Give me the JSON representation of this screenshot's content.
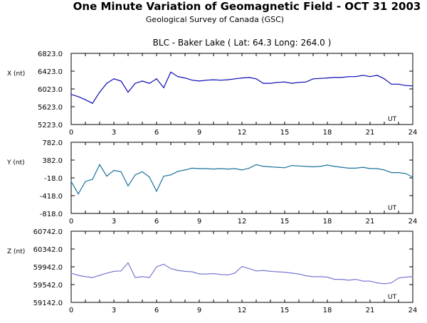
{
  "chart_data": {
    "type": "line",
    "title": "One Minute Variation of Geomagnetic Field - OCT 31 2003",
    "subtitle": "Geological Survey of Canada (GSC)",
    "station": "BLC - Baker Lake ( Lat: 64.3  Long: 264.0 )",
    "x": [
      0,
      0.5,
      1,
      1.5,
      2,
      2.5,
      3,
      3.5,
      4,
      4.5,
      5,
      5.5,
      6,
      6.5,
      7,
      7.5,
      8,
      8.5,
      9,
      9.5,
      10,
      10.5,
      11,
      11.5,
      12,
      12.5,
      13,
      13.5,
      14,
      14.5,
      15,
      15.5,
      16,
      16.5,
      17,
      17.5,
      18,
      18.5,
      19,
      19.5,
      20,
      20.5,
      21,
      21.5,
      22,
      22.5,
      23,
      23.5,
      24
    ],
    "xlabel": "UT",
    "xticks": [
      "0",
      "3",
      "6",
      "9",
      "12",
      "15",
      "18",
      "21",
      "24"
    ],
    "xlim": [
      0,
      24
    ],
    "panels": [
      {
        "name": "X",
        "ylabel": "X (nt)",
        "color": "#0a0ab4",
        "ylim": [
          5223,
          6823
        ],
        "yticks": [
          "6823.0",
          "6423.0",
          "6023.0",
          "5623.0",
          "5223.0"
        ],
        "values": [
          5900,
          5850,
          5780,
          5700,
          5950,
          6150,
          6250,
          6200,
          5950,
          6150,
          6200,
          6150,
          6250,
          6050,
          6400,
          6300,
          6270,
          6220,
          6200,
          6220,
          6230,
          6220,
          6230,
          6250,
          6270,
          6280,
          6250,
          6150,
          6150,
          6170,
          6180,
          6150,
          6170,
          6180,
          6250,
          6260,
          6270,
          6280,
          6280,
          6300,
          6300,
          6330,
          6300,
          6330,
          6250,
          6130,
          6130,
          6100,
          6090
        ]
      },
      {
        "name": "Y",
        "ylabel": "Y (nt)",
        "color": "#1a729c",
        "ylim": [
          -818,
          782
        ],
        "yticks": [
          "782.0",
          "382.0",
          "-18.0",
          "-418.0",
          "-818.0"
        ],
        "values": [
          -100,
          -380,
          -100,
          -50,
          280,
          20,
          150,
          120,
          -200,
          50,
          120,
          0,
          -320,
          20,
          50,
          130,
          160,
          200,
          190,
          190,
          180,
          190,
          180,
          190,
          160,
          200,
          280,
          240,
          230,
          220,
          210,
          260,
          250,
          240,
          230,
          240,
          270,
          240,
          220,
          200,
          200,
          220,
          190,
          190,
          160,
          100,
          100,
          80,
          0
        ]
      },
      {
        "name": "Z",
        "ylabel": "Z (nt)",
        "color": "#7a78d2",
        "ylim": [
          59142,
          60742
        ],
        "yticks": [
          "60742.0",
          "60342.0",
          "59942.0",
          "59542.0",
          "59142.0"
        ],
        "values": [
          59800,
          59750,
          59720,
          59700,
          59750,
          59800,
          59840,
          59850,
          60030,
          59700,
          59720,
          59700,
          59940,
          60000,
          59900,
          59860,
          59840,
          59830,
          59780,
          59780,
          59790,
          59770,
          59760,
          59800,
          59950,
          59900,
          59850,
          59860,
          59840,
          59830,
          59820,
          59800,
          59780,
          59740,
          59720,
          59720,
          59710,
          59660,
          59660,
          59640,
          59660,
          59620,
          59620,
          59580,
          59560,
          59580,
          59690,
          59710,
          59720
        ]
      }
    ]
  }
}
